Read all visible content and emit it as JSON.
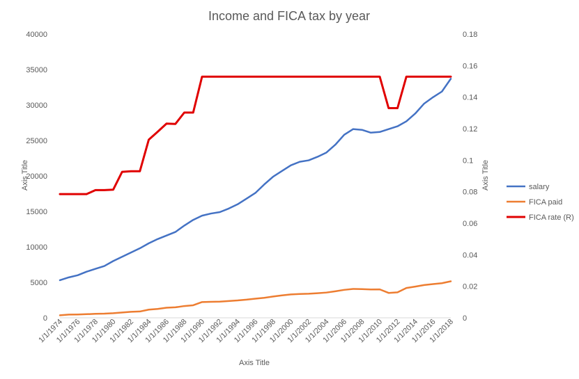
{
  "chart_data": {
    "type": "line",
    "title": "Income and FICA tax by year",
    "xlabel": "Axis Title",
    "ylabel": "Axis Title",
    "y2label": "Axis Title",
    "ylim": [
      0,
      40000
    ],
    "y2lim": [
      0,
      0.18
    ],
    "y_ticks": [
      "0",
      "5000",
      "10000",
      "15000",
      "20000",
      "25000",
      "30000",
      "35000",
      "40000"
    ],
    "y2_ticks": [
      "0",
      "0.02",
      "0.04",
      "0.06",
      "0.08",
      "0.1",
      "0.12",
      "0.14",
      "0.16",
      "0.18"
    ],
    "x_tick_labels": [
      "1/1/1974",
      "1/1/1976",
      "1/1/1978",
      "1/1/1980",
      "1/1/1982",
      "1/1/1984",
      "1/1/1986",
      "1/1/1988",
      "1/1/1990",
      "1/1/1992",
      "1/1/1994",
      "1/1/1996",
      "1/1/1998",
      "1/1/2000",
      "1/1/2002",
      "1/1/2004",
      "1/1/2006",
      "1/1/2008",
      "1/1/2010",
      "1/1/2012",
      "1/1/2014",
      "1/1/2016",
      "1/1/2018"
    ],
    "x": [
      1974,
      1975,
      1976,
      1977,
      1978,
      1979,
      1980,
      1981,
      1982,
      1983,
      1984,
      1985,
      1986,
      1987,
      1988,
      1989,
      1990,
      1991,
      1992,
      1993,
      1994,
      1995,
      1996,
      1997,
      1998,
      1999,
      2000,
      2001,
      2002,
      2003,
      2004,
      2005,
      2006,
      2007,
      2008,
      2009,
      2010,
      2011,
      2012,
      2013,
      2014,
      2015,
      2016,
      2017,
      2018
    ],
    "series": [
      {
        "name": "salary",
        "color": "#4472C4",
        "axis": "left",
        "values": [
          5300,
          5700,
          6000,
          6500,
          6900,
          7300,
          8000,
          8600,
          9200,
          9800,
          10500,
          11100,
          11600,
          12100,
          13000,
          13800,
          14400,
          14700,
          14900,
          15400,
          16000,
          16800,
          17600,
          18800,
          19900,
          20700,
          21500,
          22000,
          22200,
          22700,
          23300,
          24400,
          25800,
          26600,
          26500,
          26100,
          26200,
          26600,
          27000,
          27700,
          28800,
          30200,
          31100,
          31900,
          33700
        ]
      },
      {
        "name": "FICA paid",
        "color": "#ED7D31",
        "axis": "left",
        "values": [
          350,
          450,
          470,
          510,
          560,
          590,
          650,
          750,
          850,
          890,
          1150,
          1250,
          1420,
          1480,
          1660,
          1770,
          2220,
          2250,
          2280,
          2370,
          2450,
          2560,
          2700,
          2820,
          3000,
          3160,
          3300,
          3360,
          3400,
          3470,
          3560,
          3740,
          3940,
          4070,
          4050,
          3990,
          4010,
          3510,
          3590,
          4200,
          4400,
          4620,
          4760,
          4880,
          5150
        ]
      },
      {
        "name": "FICA rate (R)",
        "color": "#E00000",
        "axis": "right",
        "values": [
          0.0785,
          0.0785,
          0.0785,
          0.0785,
          0.081,
          0.081,
          0.0813,
          0.0926,
          0.093,
          0.093,
          0.113,
          0.118,
          0.1232,
          0.123,
          0.1302,
          0.1302,
          0.153,
          0.153,
          0.153,
          0.153,
          0.153,
          0.153,
          0.153,
          0.153,
          0.153,
          0.153,
          0.153,
          0.153,
          0.153,
          0.153,
          0.153,
          0.153,
          0.153,
          0.153,
          0.153,
          0.153,
          0.153,
          0.133,
          0.133,
          0.153,
          0.153,
          0.153,
          0.153,
          0.153,
          0.153
        ]
      }
    ],
    "legend_position": "right",
    "grid": false
  }
}
